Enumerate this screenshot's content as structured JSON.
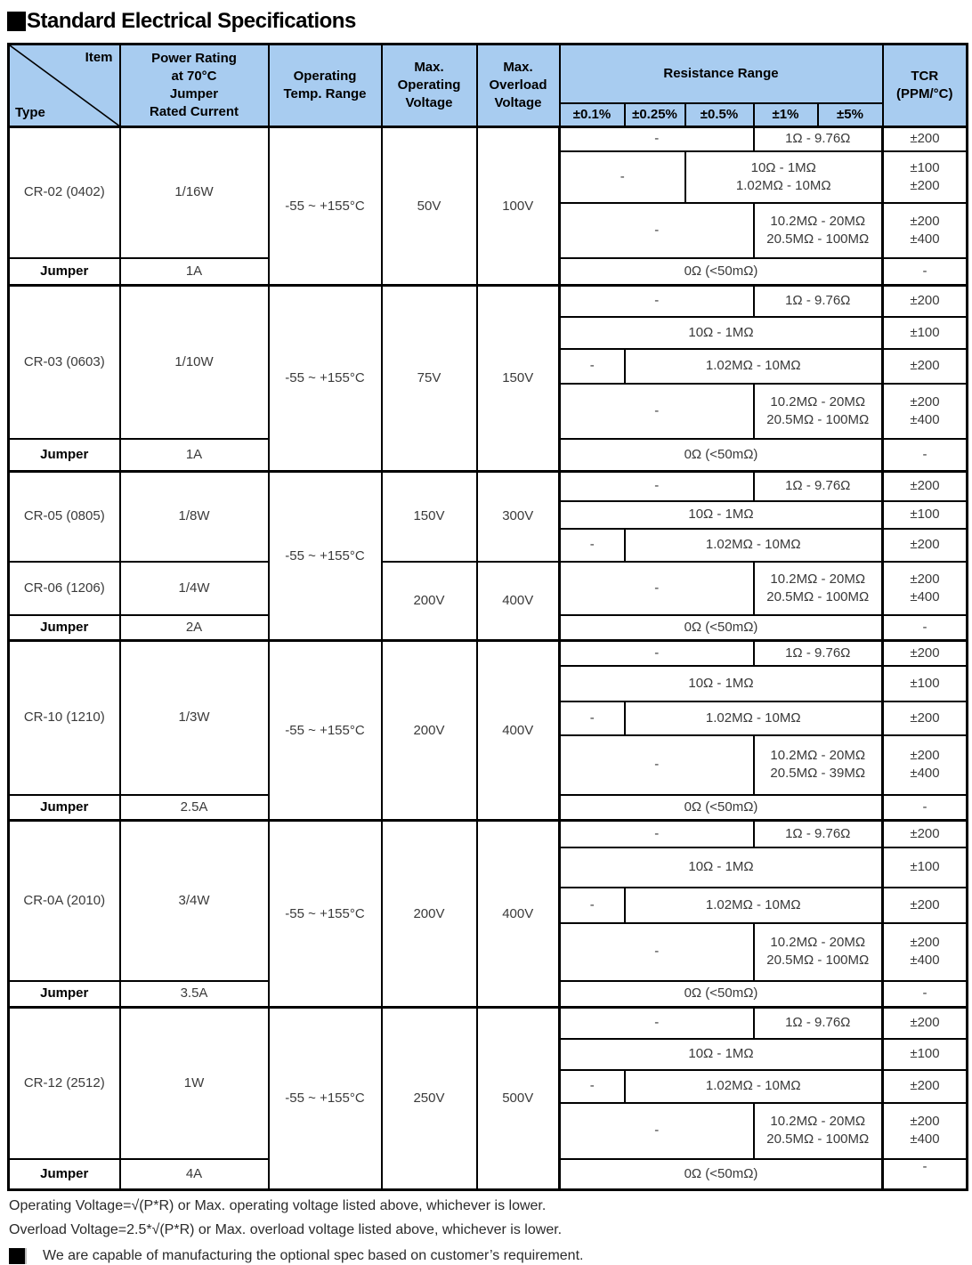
{
  "title": {
    "bullet": "■",
    "text": "Standard Electrical Specifications"
  },
  "colors": {
    "header_bg": "#A8CCF0",
    "border": "#000000"
  },
  "header": {
    "corner_item": "Item",
    "corner_type": "Type",
    "power": "Power Rating\nat 70°C\nJumper\nRated Current",
    "temp": "Operating\nTemp. Range",
    "max_operating": "Max.\nOperating\nVoltage",
    "max_overload": "Max.\nOverload\nVoltage",
    "resistance_range": "Resistance Range",
    "tolerances": [
      "±0.1%",
      "±0.25%",
      "±0.5%",
      "±1%",
      "±5%"
    ],
    "tcr": "TCR\n(PPM/°C)"
  },
  "table_rows": [
    {
      "cells": [
        {
          "t": "CR-02 (0402)",
          "rs": 3
        },
        {
          "t": "1/16W",
          "rs": 3
        },
        {
          "t": "-55 ~ +155°C",
          "rs": 4
        },
        {
          "t": "50V",
          "rs": 4
        },
        {
          "t": "100V",
          "rs": 4
        },
        {
          "t": "-",
          "cs": 3
        },
        {
          "t": "1Ω - 9.76Ω",
          "cs": 2
        },
        {
          "t": "±200"
        }
      ]
    },
    {
      "cells": [
        {
          "t": "-",
          "cs": 2
        },
        {
          "t": "10Ω - 1MΩ\n1.02MΩ - 10MΩ",
          "cs": 3
        },
        {
          "t": "±100\n±200"
        }
      ]
    },
    {
      "cells": [
        {
          "t": "-",
          "cs": 3
        },
        {
          "t": "10.2MΩ - 20MΩ\n20.5MΩ - 100MΩ",
          "cs": 2
        },
        {
          "t": "±200\n±400"
        }
      ]
    },
    {
      "cells": [
        {
          "t": "Jumper",
          "c": "bold"
        },
        {
          "t": "1A"
        },
        {
          "t": "0Ω (<50mΩ)",
          "cs": 5
        },
        {
          "t": "-"
        }
      ]
    },
    {
      "cells": [
        {
          "t": "CR-03 (0603)",
          "rs": 4
        },
        {
          "t": "1/10W",
          "rs": 4
        },
        {
          "t": "-55 ~ +155°C",
          "rs": 5
        },
        {
          "t": "75V",
          "rs": 5
        },
        {
          "t": "150V",
          "rs": 5
        },
        {
          "t": "-",
          "cs": 3
        },
        {
          "t": "1Ω - 9.76Ω",
          "cs": 2
        },
        {
          "t": "±200"
        }
      ]
    },
    {
      "cells": [
        {
          "t": "10Ω - 1MΩ",
          "cs": 5
        },
        {
          "t": "±100"
        }
      ]
    },
    {
      "cells": [
        {
          "t": "-"
        },
        {
          "t": "1.02MΩ - 10MΩ",
          "cs": 4
        },
        {
          "t": "±200"
        }
      ]
    },
    {
      "cells": [
        {
          "t": "-",
          "cs": 3
        },
        {
          "t": "10.2MΩ - 20MΩ\n20.5MΩ - 100MΩ",
          "cs": 2
        },
        {
          "t": "±200\n±400"
        }
      ]
    },
    {
      "cells": [
        {
          "t": "Jumper",
          "c": "bold"
        },
        {
          "t": "1A"
        },
        {
          "t": "0Ω (<50mΩ)",
          "cs": 5
        },
        {
          "t": "-"
        }
      ]
    },
    {
      "cells": [
        {
          "t": "CR-05 (0805)",
          "rs": 3
        },
        {
          "t": "1/8W",
          "rs": 3
        },
        {
          "t": "-55 ~ +155°C",
          "rs": 5
        },
        {
          "t": "150V",
          "rs": 3
        },
        {
          "t": "300V",
          "rs": 3
        },
        {
          "t": "-",
          "cs": 3
        },
        {
          "t": "1Ω - 9.76Ω",
          "cs": 2
        },
        {
          "t": "±200"
        }
      ]
    },
    {
      "cells": [
        {
          "t": "10Ω - 1MΩ",
          "cs": 5
        },
        {
          "t": "±100"
        }
      ]
    },
    {
      "cells": [
        {
          "t": "-"
        },
        {
          "t": "1.02MΩ - 10MΩ",
          "cs": 4
        },
        {
          "t": "±200"
        }
      ]
    },
    {
      "cells": [
        {
          "t": "CR-06 (1206)"
        },
        {
          "t": "1/4W"
        },
        {
          "t": "200V",
          "rs": 2
        },
        {
          "t": "400V",
          "rs": 2
        },
        {
          "t": "-",
          "cs": 3
        },
        {
          "t": "10.2MΩ - 20MΩ\n20.5MΩ - 100MΩ",
          "cs": 2
        },
        {
          "t": "±200\n±400"
        }
      ]
    },
    {
      "cells": [
        {
          "t": "Jumper",
          "c": "bold"
        },
        {
          "t": "2A"
        },
        {
          "t": "0Ω (<50mΩ)",
          "cs": 5
        },
        {
          "t": "-"
        }
      ]
    },
    {
      "cells": [
        {
          "t": "CR-10 (1210)",
          "rs": 4
        },
        {
          "t": "1/3W",
          "rs": 4
        },
        {
          "t": "-55 ~ +155°C",
          "rs": 5
        },
        {
          "t": "200V",
          "rs": 5
        },
        {
          "t": "400V",
          "rs": 5
        },
        {
          "t": "-",
          "cs": 3
        },
        {
          "t": "1Ω - 9.76Ω",
          "cs": 2
        },
        {
          "t": "±200"
        }
      ]
    },
    {
      "cells": [
        {
          "t": "10Ω - 1MΩ",
          "cs": 5
        },
        {
          "t": "±100"
        }
      ]
    },
    {
      "cells": [
        {
          "t": "-"
        },
        {
          "t": "1.02MΩ - 10MΩ",
          "cs": 4
        },
        {
          "t": "±200"
        }
      ]
    },
    {
      "cells": [
        {
          "t": "-",
          "cs": 3
        },
        {
          "t": "10.2MΩ - 20MΩ\n20.5MΩ - 39MΩ",
          "cs": 2
        },
        {
          "t": "±200\n±400"
        }
      ]
    },
    {
      "cells": [
        {
          "t": "Jumper",
          "c": "bold"
        },
        {
          "t": "2.5A"
        },
        {
          "t": "0Ω (<50mΩ)",
          "cs": 5
        },
        {
          "t": "-"
        }
      ]
    },
    {
      "cells": [
        {
          "t": "CR-0A (2010)",
          "rs": 4
        },
        {
          "t": "3/4W",
          "rs": 4
        },
        {
          "t": "-55 ~ +155°C",
          "rs": 5
        },
        {
          "t": "200V",
          "rs": 5
        },
        {
          "t": "400V",
          "rs": 5
        },
        {
          "t": "-",
          "cs": 3
        },
        {
          "t": "1Ω - 9.76Ω",
          "cs": 2
        },
        {
          "t": "±200"
        }
      ]
    },
    {
      "cells": [
        {
          "t": "10Ω - 1MΩ",
          "cs": 5
        },
        {
          "t": "±100"
        }
      ]
    },
    {
      "cells": [
        {
          "t": "-"
        },
        {
          "t": "1.02MΩ - 10MΩ",
          "cs": 4
        },
        {
          "t": "±200"
        }
      ]
    },
    {
      "cells": [
        {
          "t": "-",
          "cs": 3
        },
        {
          "t": "10.2MΩ - 20MΩ\n20.5MΩ - 100MΩ",
          "cs": 2
        },
        {
          "t": "±200\n±400"
        }
      ]
    },
    {
      "cells": [
        {
          "t": "Jumper",
          "c": "bold"
        },
        {
          "t": "3.5A"
        },
        {
          "t": "0Ω (<50mΩ)",
          "cs": 5
        },
        {
          "t": "-"
        }
      ]
    },
    {
      "cells": [
        {
          "t": "CR-12 (2512)",
          "rs": 4
        },
        {
          "t": "1W",
          "rs": 4
        },
        {
          "t": "-55 ~ +155°C",
          "rs": 5
        },
        {
          "t": "250V",
          "rs": 5
        },
        {
          "t": "500V",
          "rs": 5
        },
        {
          "t": "-",
          "cs": 3
        },
        {
          "t": "1Ω - 9.76Ω",
          "cs": 2
        },
        {
          "t": "±200"
        }
      ]
    },
    {
      "cells": [
        {
          "t": "10Ω - 1MΩ",
          "cs": 5
        },
        {
          "t": "±100"
        }
      ]
    },
    {
      "cells": [
        {
          "t": "-"
        },
        {
          "t": "1.02MΩ - 10MΩ",
          "cs": 4
        },
        {
          "t": "±200"
        }
      ]
    },
    {
      "cells": [
        {
          "t": "-",
          "cs": 3
        },
        {
          "t": "10.2MΩ - 20MΩ\n20.5MΩ - 100MΩ",
          "cs": 2
        },
        {
          "t": "±200\n±400"
        }
      ]
    },
    {
      "cells": [
        {
          "t": "Jumper",
          "c": "bold"
        },
        {
          "t": "4A"
        },
        {
          "t": "0Ω (<50mΩ)",
          "cs": 5
        },
        {
          "t": "-",
          "c": "top"
        }
      ]
    }
  ],
  "footnotes": [
    "Operating Voltage=√(P*R) or Max. operating voltage listed above, whichever is lower.",
    "Overload Voltage=2.5*√(P*R) or Max. overload voltage listed above, whichever is lower."
  ],
  "note": {
    "bullet": "■",
    "text": "We are  capable of manufacturing the optional spec based on customer’s requirement."
  }
}
